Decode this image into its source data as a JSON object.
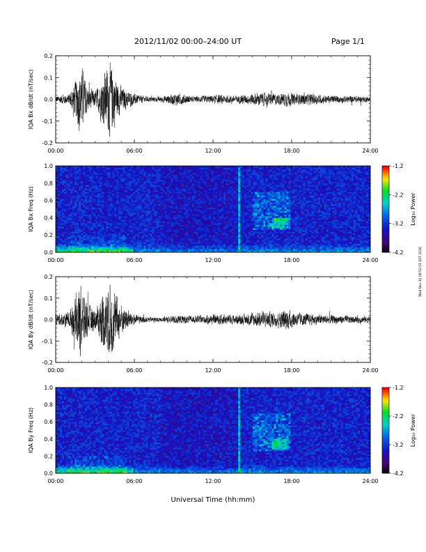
{
  "header": {
    "title": "2012/11/02  00:00–24:00 UT",
    "page": "Page 1/1"
  },
  "side_note": "Wed Nov 30 08:52:01 EST 2016",
  "xlabel": "Universal Time (hh:mm)",
  "chart_data": [
    {
      "type": "line",
      "title": "",
      "ylabel": "IQA Bx dB/dt (nT/sec)",
      "xlim": [
        0,
        24
      ],
      "ylim": [
        -0.2,
        0.2
      ],
      "xticks": [
        "00:00",
        "06:00",
        "12:00",
        "18:00",
        "24:00"
      ],
      "yticks": [
        "-0.2",
        "-0.1",
        "0.0",
        "0.1",
        "0.2"
      ],
      "series": [
        {
          "x": [
            0,
            1,
            1.5,
            1.8,
            2.1,
            2.5,
            3.1,
            3.6,
            4.1,
            4.4,
            4.7,
            5.2,
            6.0,
            7.0,
            8.0,
            9.3,
            10.5,
            11.5,
            12.5,
            13.5,
            14.5,
            15.2,
            16.0,
            17.0,
            17.6,
            18.3,
            19.5,
            21.0,
            22.5,
            24.0
          ],
          "amplitude": [
            0.02,
            0.03,
            0.1,
            0.18,
            0.16,
            0.06,
            0.05,
            0.14,
            0.2,
            0.18,
            0.1,
            0.06,
            0.03,
            0.015,
            0.015,
            0.035,
            0.015,
            0.02,
            0.025,
            0.02,
            0.025,
            0.035,
            0.035,
            0.03,
            0.04,
            0.03,
            0.03,
            0.02,
            0.02,
            0.015
          ]
        }
      ]
    },
    {
      "type": "heatmap",
      "title": "",
      "ylabel": "IQA Bx Freq (Hz)",
      "xlim": [
        0,
        24
      ],
      "ylim": [
        0,
        1
      ],
      "xticks": [
        "00:00",
        "06:00",
        "12:00",
        "18:00",
        "24:00"
      ],
      "yticks": [
        "0.0",
        "0.2",
        "0.4",
        "0.6",
        "0.8",
        "1.0"
      ],
      "colorbar": {
        "label": "Log₁₀ Power",
        "range": [
          -4.2,
          -1.2
        ],
        "ticks": [
          "-1.2",
          "-2.2",
          "-3.2",
          "-4.2"
        ]
      }
    },
    {
      "type": "line",
      "title": "",
      "ylabel": "IQA By dB/dt (nT/sec)",
      "xlim": [
        0,
        24
      ],
      "ylim": [
        -0.2,
        0.2
      ],
      "xticks": [
        "00:00",
        "06:00",
        "12:00",
        "18:00",
        "24:00"
      ],
      "yticks": [
        "-0.2",
        "-0.1",
        "0.0",
        "0.1",
        "0.2"
      ],
      "series": [
        {
          "x": [
            0,
            1,
            1.5,
            1.8,
            2.1,
            2.5,
            3.1,
            3.6,
            4.1,
            4.4,
            4.7,
            5.2,
            6.0,
            7.0,
            8.0,
            9.3,
            10.5,
            11.5,
            12.5,
            13.5,
            14.5,
            15.2,
            16.0,
            17.0,
            17.6,
            18.3,
            19.5,
            21.0,
            22.5,
            24.0
          ],
          "amplitude": [
            0.03,
            0.04,
            0.12,
            0.2,
            0.17,
            0.08,
            0.06,
            0.16,
            0.2,
            0.19,
            0.12,
            0.07,
            0.03,
            0.015,
            0.012,
            0.025,
            0.02,
            0.025,
            0.03,
            0.025,
            0.03,
            0.04,
            0.045,
            0.04,
            0.06,
            0.04,
            0.03,
            0.025,
            0.02,
            0.02
          ]
        }
      ]
    },
    {
      "type": "heatmap",
      "title": "",
      "ylabel": "IQA By Freq (Hz)",
      "xlim": [
        0,
        24
      ],
      "ylim": [
        0,
        1
      ],
      "xticks": [
        "00:00",
        "06:00",
        "12:00",
        "18:00",
        "24:00"
      ],
      "yticks": [
        "0.0",
        "0.2",
        "0.4",
        "0.6",
        "0.8",
        "1.0"
      ],
      "colorbar": {
        "label": "Log₁₀ Power",
        "range": [
          -4.2,
          -1.2
        ],
        "ticks": [
          "-1.2",
          "-2.2",
          "-3.2",
          "-4.2"
        ]
      }
    }
  ]
}
